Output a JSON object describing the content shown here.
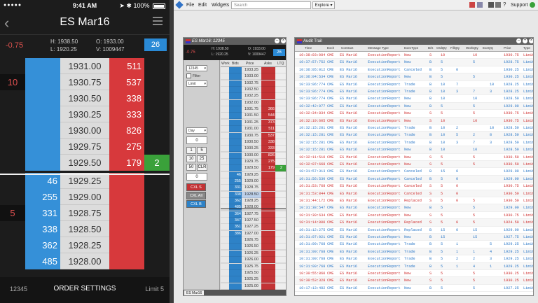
{
  "mobile": {
    "status": {
      "time": "9:41 AM",
      "battery": "100%"
    },
    "title": "ES Mar16",
    "quote": {
      "change": "-0.75",
      "high": "H: 1938.50",
      "low": "L: 1920.25",
      "open": "O: 1933.00",
      "volume": "V: 1009447",
      "qty": "26"
    },
    "ladder": [
      {
        "work": "",
        "bid": "",
        "price": "1931.00",
        "ask": "511",
        "ltq": ""
      },
      {
        "work": "10",
        "bid": "",
        "price": "1930.75",
        "ask": "537",
        "ltq": ""
      },
      {
        "work": "",
        "bid": "",
        "price": "1930.50",
        "ask": "338",
        "ltq": ""
      },
      {
        "work": "",
        "bid": "",
        "price": "1930.25",
        "ask": "333",
        "ltq": ""
      },
      {
        "work": "",
        "bid": "",
        "price": "1930.00",
        "ask": "826",
        "ltq": ""
      },
      {
        "work": "",
        "bid": "",
        "price": "1929.75",
        "ask": "275",
        "ltq": ""
      },
      {
        "work": "",
        "bid": "",
        "price": "1929.50",
        "ask": "179",
        "ltq": "2"
      },
      {
        "work": "",
        "bid": "46",
        "price": "1929.25",
        "ask": "",
        "ltq": ""
      },
      {
        "work": "",
        "bid": "255",
        "price": "1929.00",
        "ask": "",
        "ltq": ""
      },
      {
        "work": "5",
        "bid": "331",
        "price": "1928.75",
        "ask": "",
        "ltq": ""
      },
      {
        "work": "",
        "bid": "338",
        "price": "1928.50",
        "ask": "",
        "ltq": ""
      },
      {
        "work": "",
        "bid": "362",
        "price": "1928.25",
        "ask": "",
        "ltq": ""
      },
      {
        "work": "",
        "bid": "485",
        "price": "1928.00",
        "ask": "",
        "ltq": ""
      }
    ],
    "footer": {
      "account": "12345",
      "order_settings": "ORDER SETTINGS",
      "limit": "Limit 5"
    }
  },
  "desktop": {
    "menu": {
      "file": "File",
      "edit": "Edit",
      "widgets": "Widgets",
      "search_placeholder": "Search",
      "explore": "Explore",
      "support": "Support"
    },
    "mdtrader": {
      "title": "ES Mar16: 12345",
      "quote": {
        "change": "-0.75",
        "high": "H: 1938.50",
        "low": "L: 1920.25",
        "open": "O: 1933.00",
        "volume": "V: 1009447",
        "qty": "26"
      },
      "panel": {
        "account": "12345",
        "filter": "Filter",
        "order_type": "Limit",
        "tif": "Day",
        "qty": "0",
        "b1": "1",
        "b5": "5",
        "b10": "10",
        "b25": "25",
        "b50": "50",
        "clr": "CLR",
        "qty2": "0",
        "cxl_s": "CXL S",
        "cxl_all": "CXL All",
        "cxl_b": "CXL B"
      },
      "headers": {
        "work": "Work",
        "bids": "Bids",
        "price": "Price",
        "asks": "Asks",
        "ltq": "LTQ"
      },
      "ladder": [
        {
          "bid": "",
          "price": "1933.25",
          "ask": "",
          "ltq": ""
        },
        {
          "bid": "",
          "price": "1933.00",
          "ask": "",
          "ltq": ""
        },
        {
          "bid": "",
          "price": "1932.75",
          "ask": "",
          "ltq": ""
        },
        {
          "bid": "",
          "price": "1932.50",
          "ask": "",
          "ltq": ""
        },
        {
          "bid": "",
          "price": "1932.25",
          "ask": "",
          "ltq": ""
        },
        {
          "bid": "",
          "price": "1932.00",
          "ask": "",
          "ltq": ""
        },
        {
          "bid": "",
          "price": "1931.75",
          "ask": "366",
          "ltq": ""
        },
        {
          "bid": "",
          "price": "1931.50",
          "ask": "544",
          "ltq": ""
        },
        {
          "bid": "",
          "price": "1931.25",
          "ask": "373",
          "ltq": ""
        },
        {
          "bid": "",
          "price": "1931.00",
          "ask": "511",
          "ltq": ""
        },
        {
          "bid": "",
          "price": "1930.75",
          "ask": "537",
          "ltq": ""
        },
        {
          "bid": "",
          "price": "1930.50",
          "ask": "338",
          "ltq": ""
        },
        {
          "bid": "",
          "price": "1930.25",
          "ask": "333",
          "ltq": ""
        },
        {
          "bid": "",
          "price": "1930.00",
          "ask": "826",
          "ltq": ""
        },
        {
          "bid": "",
          "price": "1929.75",
          "ask": "275",
          "ltq": ""
        },
        {
          "bid": "",
          "price": "1929.50",
          "ask": "179",
          "ltq": "2"
        },
        {
          "bid": "46",
          "price": "1929.25",
          "ask": "",
          "ltq": ""
        },
        {
          "bid": "255",
          "price": "1929.00",
          "ask": "",
          "ltq": ""
        },
        {
          "bid": "331",
          "price": "1928.75",
          "ask": "",
          "ltq": ""
        },
        {
          "bid": "338",
          "price": "1928.50",
          "ask": "",
          "ltq": ""
        },
        {
          "bid": "362",
          "price": "1928.25",
          "ask": "",
          "ltq": ""
        },
        {
          "bid": "485",
          "price": "1928.00",
          "ask": "",
          "ltq": ""
        },
        {
          "bid": "364",
          "price": "1927.75",
          "ask": "",
          "ltq": ""
        },
        {
          "bid": "347",
          "price": "1927.50",
          "ask": "",
          "ltq": ""
        },
        {
          "bid": "351",
          "price": "1927.25",
          "ask": "",
          "ltq": ""
        },
        {
          "bid": "386",
          "price": "1927.00",
          "ask": "",
          "ltq": ""
        },
        {
          "bid": "",
          "price": "1926.75",
          "ask": "",
          "ltq": ""
        },
        {
          "bid": "",
          "price": "1926.50",
          "ask": "",
          "ltq": ""
        },
        {
          "bid": "",
          "price": "1926.25",
          "ask": "",
          "ltq": ""
        },
        {
          "bid": "",
          "price": "1926.00",
          "ask": "",
          "ltq": ""
        },
        {
          "bid": "",
          "price": "1925.75",
          "ask": "",
          "ltq": ""
        },
        {
          "bid": "",
          "price": "1925.50",
          "ask": "",
          "ltq": ""
        },
        {
          "bid": "",
          "price": "1925.25",
          "ask": "",
          "ltq": ""
        },
        {
          "bid": "",
          "price": "1925.00",
          "ask": "",
          "ltq": ""
        }
      ],
      "tab": "ES Mar16"
    },
    "audit": {
      "title": "Audit Trail",
      "headers": {
        "time": "Time",
        "exch": "Exch",
        "contract": "Contract",
        "msg": "Message Type",
        "exectype": "ExecType",
        "bs": "B/S",
        "ordqty": "OrdQty",
        "fillqty": "FillQty",
        "workqty": "WorkQty",
        "exeqty": "ExeQty",
        "price": "Price",
        "type": "Type"
      },
      "rows": [
        {
          "time": "10:38:03:084",
          "exch": "CME",
          "contract": "ES Mar16",
          "msg": "ExecutionReport",
          "exectype": "New",
          "bs": "S",
          "ordqty": "10",
          "fillqty": "",
          "workqty": "10",
          "exeqty": "",
          "price": "1930.75",
          "type": "Limit"
        },
        {
          "time": "10:37:57:752",
          "exch": "CME",
          "contract": "ES Mar16",
          "msg": "ExecutionReport",
          "exectype": "New",
          "bs": "B",
          "ordqty": "5",
          "fillqty": "",
          "workqty": "5",
          "exeqty": "",
          "price": "1928.75",
          "type": "Limit"
        },
        {
          "time": "10:36:05:012",
          "exch": "CME",
          "contract": "ES Mar16",
          "msg": "ExecutionReport",
          "exectype": "Canceled",
          "bs": "B",
          "ordqty": "5",
          "fillqty": "0",
          "workqty": "",
          "exeqty": "",
          "price": "1930.25",
          "type": "Limit"
        },
        {
          "time": "10:36:04:534",
          "exch": "CME",
          "contract": "ES Mar16",
          "msg": "ExecutionReport",
          "exectype": "New",
          "bs": "B",
          "ordqty": "5",
          "fillqty": "",
          "workqty": "5",
          "exeqty": "",
          "price": "1930.25",
          "type": "Limit"
        },
        {
          "time": "10:33:06:774",
          "exch": "CME",
          "contract": "ES Mar16",
          "msg": "ExecutionReport",
          "exectype": "Trade",
          "bs": "B",
          "ordqty": "10",
          "fillqty": "7",
          "workqty": "",
          "exeqty": "10",
          "price": "1928.25",
          "type": "Limit"
        },
        {
          "time": "10:33:06:774",
          "exch": "CME",
          "contract": "ES Mar16",
          "msg": "ExecutionReport",
          "exectype": "Trade",
          "bs": "B",
          "ordqty": "10",
          "fillqty": "3",
          "workqty": "7",
          "exeqty": "3",
          "price": "1928.25",
          "type": "Limit"
        },
        {
          "time": "10:33:06:774",
          "exch": "CME",
          "contract": "ES Mar16",
          "msg": "ExecutionReport",
          "exectype": "New",
          "bs": "B",
          "ordqty": "10",
          "fillqty": "",
          "workqty": "10",
          "exeqty": "",
          "price": "1928.50",
          "type": "Limit"
        },
        {
          "time": "10:32:42:077",
          "exch": "CME",
          "contract": "ES Mar16",
          "msg": "ExecutionReport",
          "exectype": "New",
          "bs": "B",
          "ordqty": "5",
          "fillqty": "",
          "workqty": "5",
          "exeqty": "",
          "price": "1929.00",
          "type": "Limit"
        },
        {
          "time": "10:32:34:834",
          "exch": "CME",
          "contract": "ES Mar16",
          "msg": "ExecutionReport",
          "exectype": "New",
          "bs": "S",
          "ordqty": "5",
          "fillqty": "",
          "workqty": "5",
          "exeqty": "",
          "price": "1930.75",
          "type": "Limit"
        },
        {
          "time": "10:32:19:605",
          "exch": "CME",
          "contract": "ES Mar16",
          "msg": "ExecutionReport",
          "exectype": "New",
          "bs": "S",
          "ordqty": "10",
          "fillqty": "",
          "workqty": "10",
          "exeqty": "",
          "price": "1930.75",
          "type": "Limit"
        },
        {
          "time": "10:32:15:281",
          "exch": "CME",
          "contract": "ES Mar16",
          "msg": "ExecutionReport",
          "exectype": "Trade",
          "bs": "B",
          "ordqty": "10",
          "fillqty": "2",
          "workqty": "",
          "exeqty": "10",
          "price": "1928.50",
          "type": "Limit"
        },
        {
          "time": "10:32:15:281",
          "exch": "CME",
          "contract": "ES Mar16",
          "msg": "ExecutionReport",
          "exectype": "Trade",
          "bs": "B",
          "ordqty": "10",
          "fillqty": "5",
          "workqty": "2",
          "exeqty": "8",
          "price": "1928.50",
          "type": "Limit"
        },
        {
          "time": "10:32:15:281",
          "exch": "CME",
          "contract": "ES Mar16",
          "msg": "ExecutionReport",
          "exectype": "Trade",
          "bs": "B",
          "ordqty": "10",
          "fillqty": "3",
          "workqty": "7",
          "exeqty": "3",
          "price": "1928.50",
          "type": "Limit"
        },
        {
          "time": "10:32:15:281",
          "exch": "CME",
          "contract": "ES Mar16",
          "msg": "ExecutionReport",
          "exectype": "New",
          "bs": "B",
          "ordqty": "10",
          "fillqty": "",
          "workqty": "10",
          "exeqty": "",
          "price": "1928.50",
          "type": "Limit"
        },
        {
          "time": "10:32:11:510",
          "exch": "CME",
          "contract": "ES Mar16",
          "msg": "ExecutionReport",
          "exectype": "New",
          "bs": "S",
          "ordqty": "5",
          "fillqty": "",
          "workqty": "5",
          "exeqty": "",
          "price": "1930.50",
          "type": "Limit"
        },
        {
          "time": "10:32:07:668",
          "exch": "CME",
          "contract": "ES Mar16",
          "msg": "ExecutionReport",
          "exectype": "New",
          "bs": "S",
          "ordqty": "5",
          "fillqty": "",
          "workqty": "5",
          "exeqty": "",
          "price": "1930.50",
          "type": "Limit"
        },
        {
          "time": "10:31:57:313",
          "exch": "CME",
          "contract": "ES Mar16",
          "msg": "ExecutionReport",
          "exectype": "Canceled",
          "bs": "B",
          "ordqty": "15",
          "fillqty": "0",
          "workqty": "",
          "exeqty": "",
          "price": "1929.00",
          "type": "Limit"
        },
        {
          "time": "10:31:56:530",
          "exch": "CME",
          "contract": "ES Mar16",
          "msg": "ExecutionReport",
          "exectype": "Canceled",
          "bs": "B",
          "ordqty": "5",
          "fillqty": "0",
          "workqty": "",
          "exeqty": "",
          "price": "1929.00",
          "type": "Limit"
        },
        {
          "time": "10:31:53:768",
          "exch": "CME",
          "contract": "ES Mar16",
          "msg": "ExecutionReport",
          "exectype": "Canceled",
          "bs": "S",
          "ordqty": "5",
          "fillqty": "0",
          "workqty": "",
          "exeqty": "",
          "price": "1930.75",
          "type": "Limit"
        },
        {
          "time": "10:31:53:844",
          "exch": "CME",
          "contract": "ES Mar16",
          "msg": "ExecutionReport",
          "exectype": "Canceled",
          "bs": "S",
          "ordqty": "5",
          "fillqty": "0",
          "workqty": "",
          "exeqty": "",
          "price": "1930.50",
          "type": "Limit"
        },
        {
          "time": "10:31:44:172",
          "exch": "CME",
          "contract": "ES Mar16",
          "msg": "ExecutionReport",
          "exectype": "Replaced",
          "bs": "S",
          "ordqty": "5",
          "fillqty": "0",
          "workqty": "5",
          "exeqty": "",
          "price": "1930.50",
          "type": "Limit"
        },
        {
          "time": "10:31:38:547",
          "exch": "CME",
          "contract": "ES Mar16",
          "msg": "ExecutionReport",
          "exectype": "New",
          "bs": "B",
          "ordqty": "5",
          "fillqty": "",
          "workqty": "5",
          "exeqty": "",
          "price": "1929.00",
          "type": "Limit"
        },
        {
          "time": "10:31:30:634",
          "exch": "CME",
          "contract": "ES Mar16",
          "msg": "ExecutionReport",
          "exectype": "New",
          "bs": "S",
          "ordqty": "5",
          "fillqty": "",
          "workqty": "5",
          "exeqty": "",
          "price": "1930.75",
          "type": "Limit"
        },
        {
          "time": "10:31:14:000",
          "exch": "CME",
          "contract": "ES Mar16",
          "msg": "ExecutionReport",
          "exectype": "Replaced",
          "bs": "S",
          "ordqty": "5",
          "fillqty": "0",
          "workqty": "5",
          "exeqty": "",
          "price": "1924.50",
          "type": "Limit"
        },
        {
          "time": "10:31:12:275",
          "exch": "CME",
          "contract": "ES Mar16",
          "msg": "ExecutionReport",
          "exectype": "Replaced",
          "bs": "B",
          "ordqty": "15",
          "fillqty": "0",
          "workqty": "15",
          "exeqty": "",
          "price": "1929.00",
          "type": "Limit"
        },
        {
          "time": "10:31:07:021",
          "exch": "CME",
          "contract": "ES Mar16",
          "msg": "ExecutionReport",
          "exectype": "New",
          "bs": "B",
          "ordqty": "15",
          "fillqty": "",
          "workqty": "15",
          "exeqty": "",
          "price": "1927.75",
          "type": "Limit"
        },
        {
          "time": "10:31:00:768",
          "exch": "CME",
          "contract": "ES Mar16",
          "msg": "ExecutionReport",
          "exectype": "Trade",
          "bs": "B",
          "ordqty": "5",
          "fillqty": "1",
          "workqty": "",
          "exeqty": "5",
          "price": "1929.25",
          "type": "Limit"
        },
        {
          "time": "10:31:00:768",
          "exch": "CME",
          "contract": "ES Mar16",
          "msg": "ExecutionReport",
          "exectype": "Trade",
          "bs": "B",
          "ordqty": "5",
          "fillqty": "1",
          "workqty": "1",
          "exeqty": "4",
          "price": "1929.25",
          "type": "Limit"
        },
        {
          "time": "10:31:00:768",
          "exch": "CME",
          "contract": "ES Mar16",
          "msg": "ExecutionReport",
          "exectype": "Trade",
          "bs": "B",
          "ordqty": "5",
          "fillqty": "2",
          "workqty": "2",
          "exeqty": "3",
          "price": "1929.25",
          "type": "Limit"
        },
        {
          "time": "10:31:00:768",
          "exch": "CME",
          "contract": "ES Mar16",
          "msg": "ExecutionReport",
          "exectype": "Trade",
          "bs": "B",
          "ordqty": "5",
          "fillqty": "1",
          "workqty": "4",
          "exeqty": "1",
          "price": "1929.25",
          "type": "Limit"
        },
        {
          "time": "10:30:55:860",
          "exch": "CME",
          "contract": "ES Mar16",
          "msg": "ExecutionReport",
          "exectype": "New",
          "bs": "S",
          "ordqty": "5",
          "fillqty": "",
          "workqty": "5",
          "exeqty": "",
          "price": "1930.25",
          "type": "Limit"
        },
        {
          "time": "10:30:53:328",
          "exch": "CME",
          "contract": "ES Mar16",
          "msg": "ExecutionReport",
          "exectype": "New",
          "bs": "S",
          "ordqty": "5",
          "fillqty": "",
          "workqty": "5",
          "exeqty": "",
          "price": "1930.25",
          "type": "Limit"
        },
        {
          "time": "10:17:13:482",
          "exch": "CME",
          "contract": "ES Mar16",
          "msg": "ExecutionReport",
          "exectype": "New",
          "bs": "B",
          "ordqty": "5",
          "fillqty": "",
          "workqty": "5",
          "exeqty": "",
          "price": "1927.25",
          "type": "Limit"
        }
      ]
    }
  }
}
